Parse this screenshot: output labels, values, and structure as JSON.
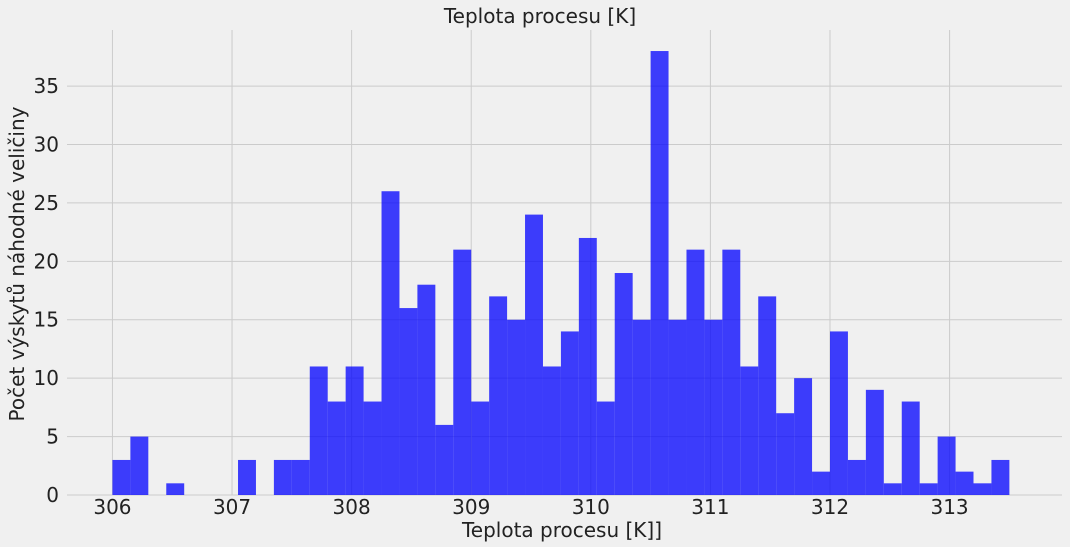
{
  "chart_data": {
    "type": "bar",
    "title": "Teplota procesu [K]",
    "xlabel": "Teplota procesu [K]]",
    "ylabel": "Počet výskytů náhodné veličiny",
    "xlim": [
      305.62,
      313.94
    ],
    "ylim": [
      0,
      39.8
    ],
    "xticks": [
      306,
      307,
      308,
      309,
      310,
      311,
      312,
      313
    ],
    "yticks": [
      0,
      5,
      10,
      15,
      20,
      25,
      30,
      35
    ],
    "grid": true,
    "bar_color": "#0000ff",
    "bins": {
      "start": 306.0,
      "width": 0.15,
      "counts": [
        3,
        5,
        0,
        1,
        0,
        0,
        0,
        3,
        0,
        3,
        3,
        11,
        8,
        11,
        8,
        26,
        16,
        18,
        6,
        21,
        8,
        17,
        15,
        24,
        11,
        14,
        22,
        8,
        19,
        15,
        38,
        15,
        21,
        15,
        21,
        11,
        17,
        7,
        10,
        2,
        14,
        3,
        9,
        1,
        8,
        1,
        5,
        2,
        1,
        3
      ]
    }
  }
}
